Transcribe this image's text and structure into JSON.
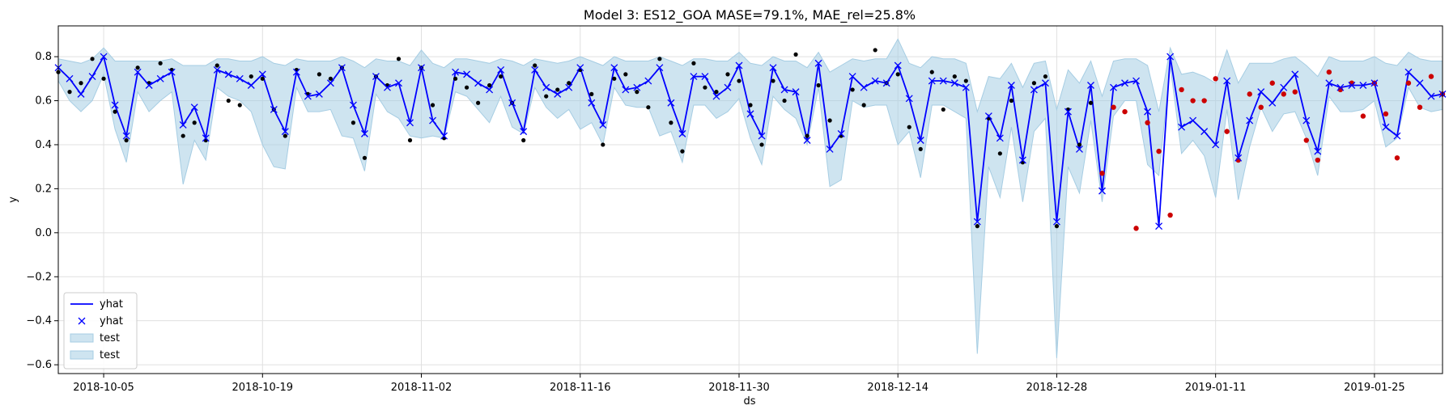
{
  "chart_data": {
    "type": "line",
    "title": "Model 3: ES12_GOA MASE=79.1%, MAE_rel=25.8%",
    "xlabel": "ds",
    "ylabel": "y",
    "x_start": "2018-10-01",
    "x_range": [
      "2018-10-01",
      "2019-01-31"
    ],
    "ylim": [
      -0.64,
      0.94
    ],
    "y_ticks": [
      -0.6,
      -0.4,
      -0.2,
      0.0,
      0.2,
      0.4,
      0.6,
      0.8
    ],
    "x_ticks": [
      "2018-10-05",
      "2018-10-19",
      "2018-11-02",
      "2018-11-16",
      "2018-11-30",
      "2018-12-14",
      "2018-12-28",
      "2019-01-11",
      "2019-01-25"
    ],
    "grid": true,
    "legend_position": "bottom-left",
    "legend": [
      {
        "label": "yhat",
        "kind": "line"
      },
      {
        "label": "yhat",
        "kind": "marker"
      },
      {
        "label": "test",
        "kind": "band"
      },
      {
        "label": "test",
        "kind": "band"
      }
    ],
    "colors": {
      "yhat": "#0000ff",
      "band": "#a6cde3",
      "actual": "#000000",
      "test": "#cc0000",
      "grid": "#e0e0e0"
    },
    "yhat": [
      0.75,
      0.7,
      0.63,
      0.71,
      0.8,
      0.58,
      0.44,
      0.73,
      0.67,
      0.7,
      0.73,
      0.49,
      0.57,
      0.43,
      0.74,
      0.72,
      0.7,
      0.67,
      0.72,
      0.56,
      0.46,
      0.73,
      0.62,
      0.63,
      0.68,
      0.75,
      0.58,
      0.45,
      0.71,
      0.66,
      0.68,
      0.5,
      0.75,
      0.51,
      0.44,
      0.73,
      0.72,
      0.68,
      0.65,
      0.74,
      0.59,
      0.46,
      0.74,
      0.66,
      0.63,
      0.66,
      0.75,
      0.59,
      0.49,
      0.75,
      0.65,
      0.66,
      0.69,
      0.75,
      0.59,
      0.45,
      0.71,
      0.71,
      0.62,
      0.66,
      0.76,
      0.54,
      0.44,
      0.75,
      0.65,
      0.64,
      0.42,
      0.77,
      0.38,
      0.45,
      0.71,
      0.66,
      0.69,
      0.68,
      0.76,
      0.61,
      0.42,
      0.69,
      0.69,
      0.68,
      0.66,
      0.05,
      0.53,
      0.43,
      0.67,
      0.33,
      0.65,
      0.68,
      0.05,
      0.55,
      0.38,
      0.67,
      0.19,
      0.66,
      0.68,
      0.69,
      0.55,
      0.03,
      0.8,
      0.48,
      0.51,
      0.46,
      0.4,
      0.69,
      0.34,
      0.51,
      0.64,
      0.59,
      0.66,
      0.72,
      0.51,
      0.37,
      0.68,
      0.66,
      0.67,
      0.67,
      0.68,
      0.48,
      0.44,
      0.73,
      0.68,
      0.62,
      0.63
    ],
    "band_upper": [
      0.79,
      0.78,
      0.77,
      0.79,
      0.84,
      0.78,
      0.78,
      0.78,
      0.78,
      0.78,
      0.79,
      0.76,
      0.76,
      0.76,
      0.79,
      0.79,
      0.78,
      0.78,
      0.8,
      0.77,
      0.76,
      0.79,
      0.78,
      0.78,
      0.78,
      0.8,
      0.78,
      0.75,
      0.79,
      0.78,
      0.78,
      0.76,
      0.83,
      0.77,
      0.75,
      0.79,
      0.79,
      0.78,
      0.77,
      0.79,
      0.78,
      0.76,
      0.79,
      0.78,
      0.77,
      0.78,
      0.8,
      0.78,
      0.76,
      0.8,
      0.78,
      0.78,
      0.78,
      0.8,
      0.78,
      0.76,
      0.79,
      0.79,
      0.78,
      0.78,
      0.82,
      0.77,
      0.76,
      0.8,
      0.78,
      0.78,
      0.75,
      0.82,
      0.73,
      0.76,
      0.79,
      0.78,
      0.79,
      0.79,
      0.88,
      0.77,
      0.75,
      0.8,
      0.79,
      0.79,
      0.77,
      0.55,
      0.71,
      0.7,
      0.77,
      0.66,
      0.77,
      0.78,
      0.56,
      0.74,
      0.68,
      0.78,
      0.62,
      0.78,
      0.79,
      0.79,
      0.76,
      0.55,
      0.84,
      0.72,
      0.73,
      0.71,
      0.68,
      0.83,
      0.68,
      0.77,
      0.77,
      0.77,
      0.79,
      0.8,
      0.76,
      0.71,
      0.8,
      0.78,
      0.78,
      0.78,
      0.8,
      0.77,
      0.76,
      0.82,
      0.79,
      0.78,
      0.78
    ],
    "band_lower": [
      0.69,
      0.6,
      0.55,
      0.6,
      0.72,
      0.47,
      0.32,
      0.64,
      0.55,
      0.6,
      0.64,
      0.22,
      0.42,
      0.33,
      0.66,
      0.62,
      0.6,
      0.55,
      0.4,
      0.3,
      0.29,
      0.66,
      0.55,
      0.55,
      0.56,
      0.44,
      0.43,
      0.28,
      0.63,
      0.55,
      0.52,
      0.44,
      0.43,
      0.44,
      0.43,
      0.64,
      0.62,
      0.56,
      0.5,
      0.62,
      0.48,
      0.45,
      0.66,
      0.57,
      0.52,
      0.56,
      0.47,
      0.5,
      0.4,
      0.66,
      0.58,
      0.57,
      0.57,
      0.44,
      0.46,
      0.32,
      0.58,
      0.58,
      0.52,
      0.55,
      0.61,
      0.43,
      0.31,
      0.62,
      0.56,
      0.52,
      0.4,
      0.66,
      0.21,
      0.24,
      0.6,
      0.57,
      0.58,
      0.58,
      0.4,
      0.46,
      0.25,
      0.58,
      0.58,
      0.55,
      0.52,
      -0.55,
      0.3,
      0.16,
      0.48,
      0.14,
      0.46,
      0.52,
      -0.57,
      0.3,
      0.18,
      0.51,
      0.14,
      0.53,
      0.6,
      0.6,
      0.31,
      0.26,
      0.76,
      0.36,
      0.42,
      0.35,
      0.16,
      0.56,
      0.15,
      0.39,
      0.57,
      0.46,
      0.54,
      0.55,
      0.43,
      0.26,
      0.62,
      0.55,
      0.55,
      0.56,
      0.6,
      0.39,
      0.43,
      0.66,
      0.57,
      0.55,
      0.56
    ],
    "actual": [
      {
        "i": 0,
        "y": 0.73
      },
      {
        "i": 1,
        "y": 0.64
      },
      {
        "i": 2,
        "y": 0.68
      },
      {
        "i": 3,
        "y": 0.79
      },
      {
        "i": 4,
        "y": 0.7
      },
      {
        "i": 5,
        "y": 0.55
      },
      {
        "i": 6,
        "y": 0.42
      },
      {
        "i": 7,
        "y": 0.75
      },
      {
        "i": 8,
        "y": 0.68
      },
      {
        "i": 9,
        "y": 0.77
      },
      {
        "i": 10,
        "y": 0.74
      },
      {
        "i": 11,
        "y": 0.44
      },
      {
        "i": 12,
        "y": 0.5
      },
      {
        "i": 13,
        "y": 0.42
      },
      {
        "i": 14,
        "y": 0.76
      },
      {
        "i": 15,
        "y": 0.6
      },
      {
        "i": 16,
        "y": 0.58
      },
      {
        "i": 17,
        "y": 0.71
      },
      {
        "i": 18,
        "y": 0.7
      },
      {
        "i": 19,
        "y": 0.56
      },
      {
        "i": 20,
        "y": 0.44
      },
      {
        "i": 21,
        "y": 0.74
      },
      {
        "i": 22,
        "y": 0.63
      },
      {
        "i": 23,
        "y": 0.72
      },
      {
        "i": 24,
        "y": 0.7
      },
      {
        "i": 25,
        "y": 0.75
      },
      {
        "i": 26,
        "y": 0.5
      },
      {
        "i": 27,
        "y": 0.34
      },
      {
        "i": 28,
        "y": 0.71
      },
      {
        "i": 29,
        "y": 0.67
      },
      {
        "i": 30,
        "y": 0.79
      },
      {
        "i": 31,
        "y": 0.42
      },
      {
        "i": 32,
        "y": 0.75
      },
      {
        "i": 33,
        "y": 0.58
      },
      {
        "i": 34,
        "y": 0.43
      },
      {
        "i": 35,
        "y": 0.7
      },
      {
        "i": 36,
        "y": 0.66
      },
      {
        "i": 37,
        "y": 0.59
      },
      {
        "i": 38,
        "y": 0.67
      },
      {
        "i": 39,
        "y": 0.71
      },
      {
        "i": 40,
        "y": 0.59
      },
      {
        "i": 41,
        "y": 0.42
      },
      {
        "i": 42,
        "y": 0.76
      },
      {
        "i": 43,
        "y": 0.62
      },
      {
        "i": 44,
        "y": 0.65
      },
      {
        "i": 45,
        "y": 0.68
      },
      {
        "i": 46,
        "y": 0.74
      },
      {
        "i": 47,
        "y": 0.63
      },
      {
        "i": 48,
        "y": 0.4
      },
      {
        "i": 49,
        "y": 0.7
      },
      {
        "i": 50,
        "y": 0.72
      },
      {
        "i": 51,
        "y": 0.64
      },
      {
        "i": 52,
        "y": 0.57
      },
      {
        "i": 53,
        "y": 0.79
      },
      {
        "i": 54,
        "y": 0.5
      },
      {
        "i": 55,
        "y": 0.37
      },
      {
        "i": 56,
        "y": 0.77
      },
      {
        "i": 57,
        "y": 0.66
      },
      {
        "i": 58,
        "y": 0.64
      },
      {
        "i": 59,
        "y": 0.72
      },
      {
        "i": 60,
        "y": 0.69
      },
      {
        "i": 61,
        "y": 0.58
      },
      {
        "i": 62,
        "y": 0.4
      },
      {
        "i": 63,
        "y": 0.69
      },
      {
        "i": 64,
        "y": 0.6
      },
      {
        "i": 65,
        "y": 0.81
      },
      {
        "i": 66,
        "y": 0.44
      },
      {
        "i": 67,
        "y": 0.67
      },
      {
        "i": 68,
        "y": 0.51
      },
      {
        "i": 69,
        "y": 0.44
      },
      {
        "i": 70,
        "y": 0.65
      },
      {
        "i": 71,
        "y": 0.58
      },
      {
        "i": 72,
        "y": 0.83
      },
      {
        "i": 73,
        "y": 0.68
      },
      {
        "i": 74,
        "y": 0.72
      },
      {
        "i": 75,
        "y": 0.48
      },
      {
        "i": 76,
        "y": 0.38
      },
      {
        "i": 77,
        "y": 0.73
      },
      {
        "i": 78,
        "y": 0.56
      },
      {
        "i": 79,
        "y": 0.71
      },
      {
        "i": 80,
        "y": 0.69
      },
      {
        "i": 81,
        "y": 0.03
      },
      {
        "i": 82,
        "y": 0.52
      },
      {
        "i": 83,
        "y": 0.36
      },
      {
        "i": 84,
        "y": 0.6
      },
      {
        "i": 85,
        "y": 0.32
      },
      {
        "i": 86,
        "y": 0.68
      },
      {
        "i": 87,
        "y": 0.71
      },
      {
        "i": 88,
        "y": 0.03
      },
      {
        "i": 89,
        "y": 0.56
      },
      {
        "i": 90,
        "y": 0.4
      },
      {
        "i": 91,
        "y": 0.59
      }
    ],
    "test": [
      {
        "i": 92,
        "y": 0.27
      },
      {
        "i": 93,
        "y": 0.57
      },
      {
        "i": 94,
        "y": 0.55
      },
      {
        "i": 95,
        "y": 0.02
      },
      {
        "i": 96,
        "y": 0.5
      },
      {
        "i": 97,
        "y": 0.37
      },
      {
        "i": 98,
        "y": 0.08
      },
      {
        "i": 99,
        "y": 0.65
      },
      {
        "i": 100,
        "y": 0.6
      },
      {
        "i": 101,
        "y": 0.6
      },
      {
        "i": 102,
        "y": 0.7
      },
      {
        "i": 103,
        "y": 0.46
      },
      {
        "i": 104,
        "y": 0.33
      },
      {
        "i": 105,
        "y": 0.63
      },
      {
        "i": 106,
        "y": 0.57
      },
      {
        "i": 107,
        "y": 0.68
      },
      {
        "i": 108,
        "y": 0.63
      },
      {
        "i": 109,
        "y": 0.64
      },
      {
        "i": 110,
        "y": 0.42
      },
      {
        "i": 111,
        "y": 0.33
      },
      {
        "i": 112,
        "y": 0.73
      },
      {
        "i": 113,
        "y": 0.65
      },
      {
        "i": 114,
        "y": 0.68
      },
      {
        "i": 115,
        "y": 0.53
      },
      {
        "i": 116,
        "y": 0.68
      },
      {
        "i": 117,
        "y": 0.54
      },
      {
        "i": 118,
        "y": 0.34
      },
      {
        "i": 119,
        "y": 0.68
      },
      {
        "i": 120,
        "y": 0.57
      },
      {
        "i": 121,
        "y": 0.71
      },
      {
        "i": 122,
        "y": 0.63
      }
    ]
  }
}
